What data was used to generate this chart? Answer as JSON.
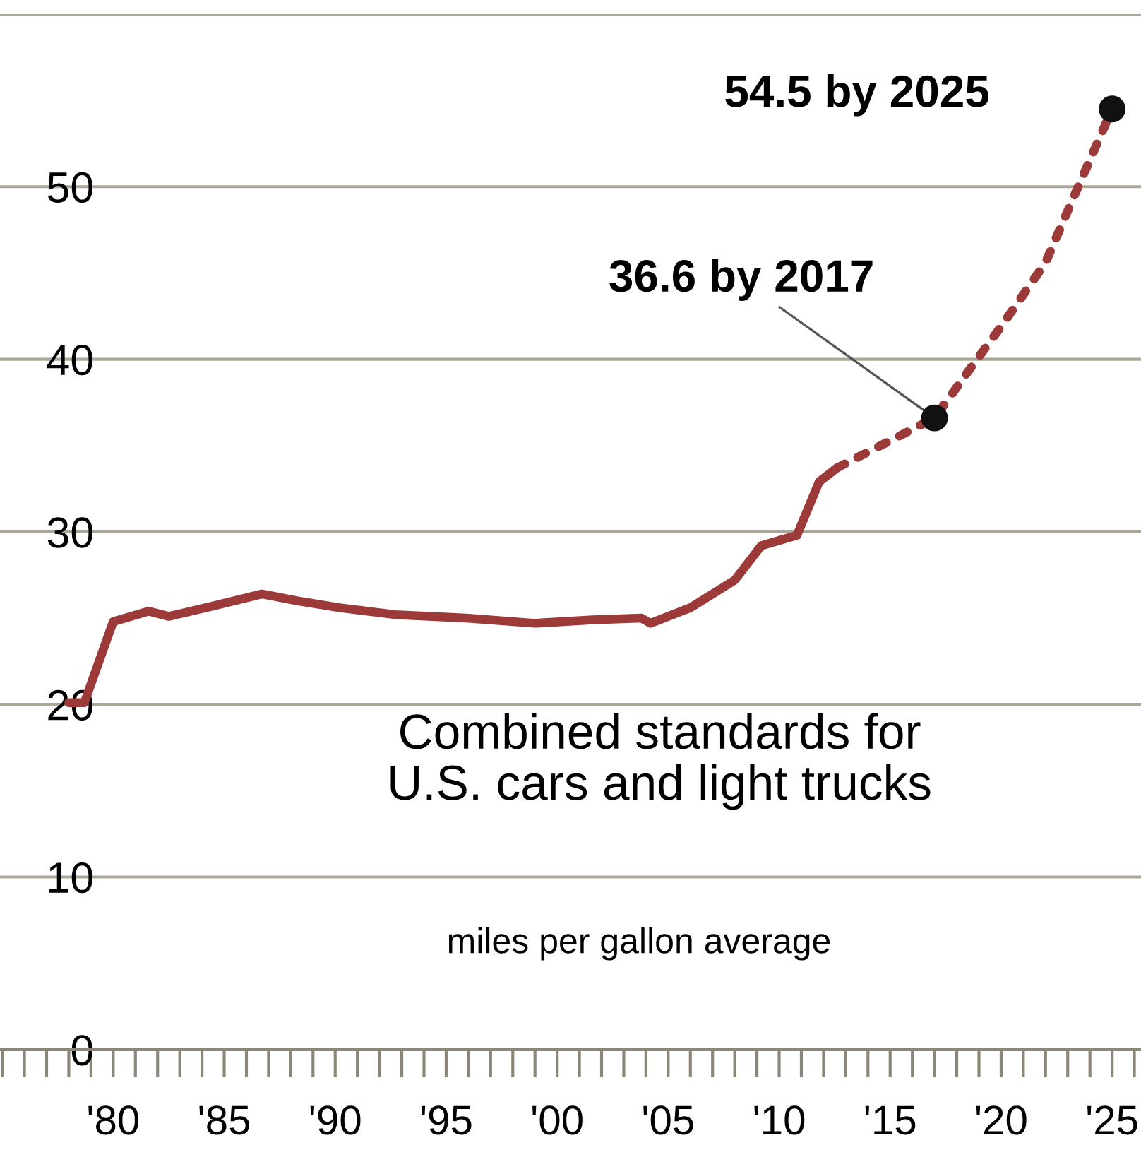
{
  "chart_data": {
    "type": "line",
    "title": "Combined standards for\nU.S. cars and light trucks",
    "subtitle": "miles per gallon average",
    "series": [
      {
        "color": "#9c3a3a",
        "line_style": "solid",
        "x": [
          1978,
          1978.7,
          1980,
          1981.6,
          1982.5,
          1984.5,
          1986.7,
          1988.3,
          1990.2,
          1992.7,
          1995.9,
          1999,
          2001.6,
          2003.8,
          2004.2,
          2006,
          2008,
          2009.2,
          2010.8,
          2011.8,
          2012.6
        ],
        "values": [
          20.1,
          20.1,
          24.8,
          25.4,
          25.1,
          25.7,
          26.4,
          26,
          25.6,
          25.2,
          25,
          24.7,
          24.9,
          25,
          24.7,
          25.6,
          27.2,
          29.2,
          29.8,
          32.9,
          33.7
        ]
      },
      {
        "color": "#9c3a3a",
        "line_style": "dotted",
        "x": [
          2012.6,
          2017,
          2018.8,
          2020,
          2022,
          2023.2,
          2025
        ],
        "values": [
          33.7,
          36.6,
          39.8,
          41.9,
          45.6,
          49.2,
          54.5
        ]
      },
      {
        "type": "scatter",
        "marker": "circle",
        "color": "#111111",
        "x": [
          2017,
          2025
        ],
        "values": [
          36.6,
          54.5
        ]
      }
    ],
    "annotations": [
      {
        "text": "36.6 by 2017",
        "x": 2017,
        "y": 36.6
      },
      {
        "text": "54.5 by 2025",
        "x": 2025,
        "y": 54.5
      }
    ],
    "xlim": [
      1974.9,
      2026.3
    ],
    "ylim": [
      0,
      60
    ],
    "xticks": [
      {
        "value": 1980,
        "label": "'80"
      },
      {
        "value": 1985,
        "label": "'85"
      },
      {
        "value": 1990,
        "label": "'90"
      },
      {
        "value": 1995,
        "label": "'95"
      },
      {
        "value": 2000,
        "label": "'00"
      },
      {
        "value": 2005,
        "label": "'05"
      },
      {
        "value": 2010,
        "label": "'10"
      },
      {
        "value": 2015,
        "label": "'15"
      },
      {
        "value": 2020,
        "label": "'20"
      },
      {
        "value": 2025,
        "label": "'25"
      }
    ],
    "yticks": [
      0,
      10,
      20,
      30,
      40,
      50,
      {
        "value": 60,
        "label": null
      }
    ],
    "grid": "y",
    "legend": false
  }
}
